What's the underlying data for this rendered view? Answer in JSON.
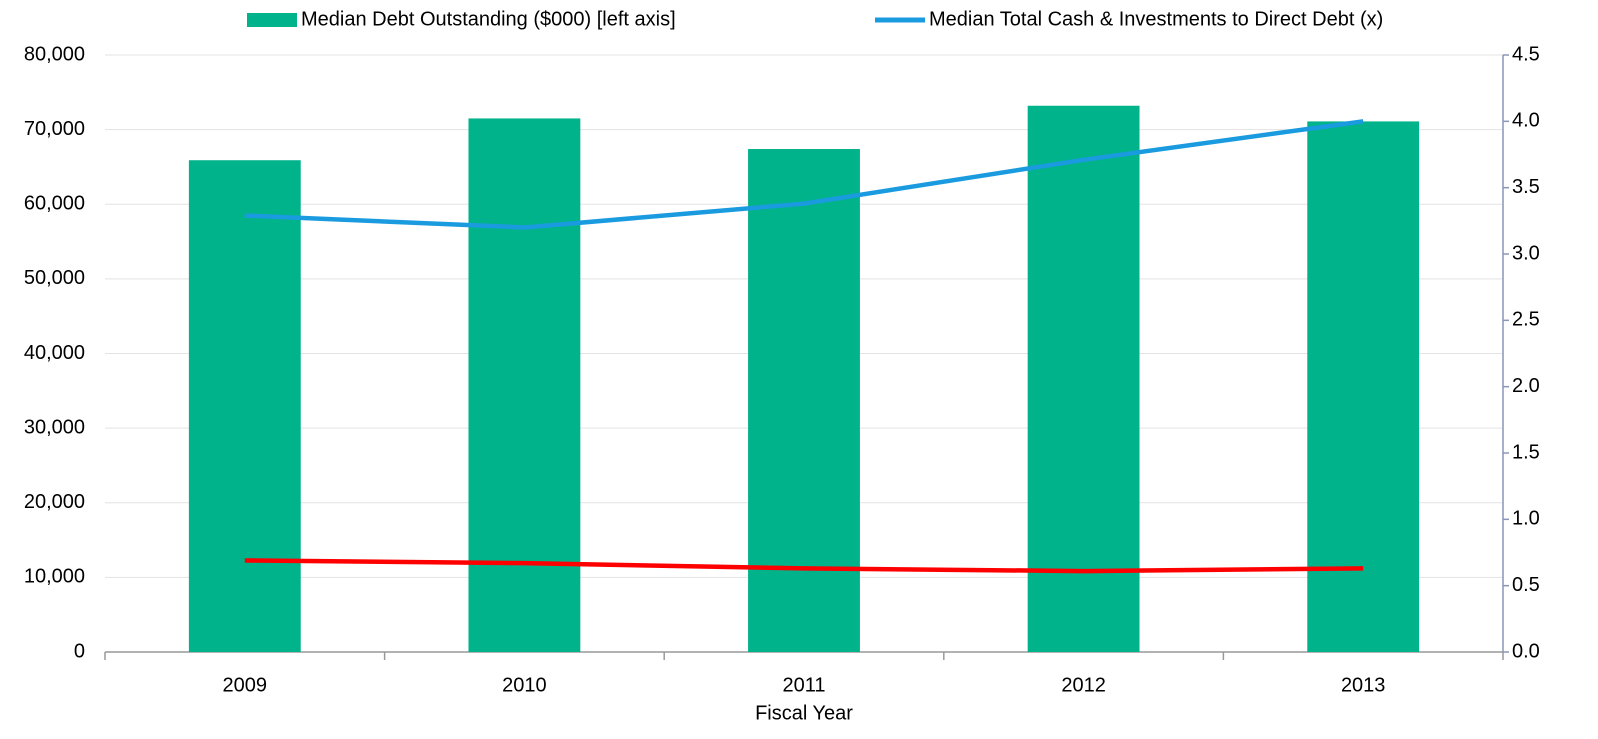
{
  "chart_data": {
    "type": "bar-line",
    "x_label": "Fiscal Year",
    "categories": [
      "2009",
      "2010",
      "2011",
      "2012",
      "2013"
    ],
    "series": [
      {
        "name": "Median Debt Outstanding ($000) [left axis]",
        "type": "bar",
        "color": "#00b38a",
        "values": [
          65900,
          71500,
          67400,
          73200,
          71100
        ]
      },
      {
        "name": "Median Total Cash & Investments to Direct Debt (x)",
        "type": "line",
        "axis": "y2",
        "color": "#1a9be0",
        "values": [
          3.29,
          3.2,
          3.38,
          3.71,
          4.0
        ]
      },
      {
        "type": "line",
        "axis": "y2",
        "color": "#ff0000",
        "values": [
          0.69,
          0.67,
          0.63,
          0.61,
          0.63
        ]
      }
    ],
    "ylim": [
      0,
      80000
    ],
    "yticks": [
      0,
      {
        "value": 10000,
        "label": "10,000"
      },
      {
        "value": 20000,
        "label": "20,000"
      },
      {
        "value": 30000,
        "label": "30,000"
      },
      {
        "value": 40000,
        "label": "40,000"
      },
      {
        "value": 50000,
        "label": "50,000"
      },
      {
        "value": 60000,
        "label": "60,000"
      },
      {
        "value": 70000,
        "label": "70,000"
      },
      {
        "value": 80000,
        "label": "80,000"
      }
    ],
    "y2lim": [
      0,
      4.5
    ],
    "y2ticks": [
      {
        "value": 0,
        "label": "0.0"
      },
      0.5,
      {
        "value": 1,
        "label": "1.0"
      },
      1.5,
      {
        "value": 2,
        "label": "2.0"
      },
      2.5,
      {
        "value": 3,
        "label": "3.0"
      },
      3.5,
      {
        "value": 4,
        "label": "4.0"
      },
      4.5
    ],
    "grid": true,
    "legend": "top"
  }
}
